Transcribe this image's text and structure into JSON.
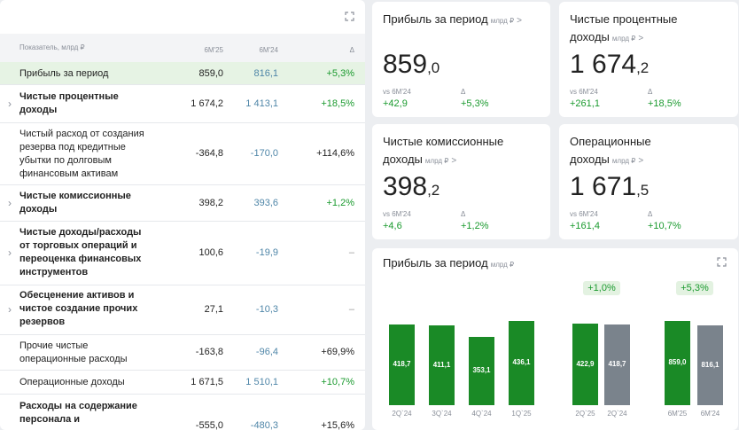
{
  "table": {
    "headers": {
      "name": "Показатель, млрд ₽",
      "c1": "6M'25",
      "c2": "6M'24",
      "c3": "Δ"
    },
    "rows": [
      {
        "name": "Прибыль за период",
        "v1": "859,0",
        "v2": "816,1",
        "v3": "+5,3%"
      },
      {
        "name": "Чистые процентные доходы",
        "v1": "1 674,2",
        "v2": "1 413,1",
        "v3": "+18,5%"
      },
      {
        "name": "Чистый расход от создания резерва под кредитные убытки по долговым финансовым активам",
        "v1": "-364,8",
        "v2": "-170,0",
        "v3": "+114,6%"
      },
      {
        "name": "Чистые комиссионные доходы",
        "v1": "398,2",
        "v2": "393,6",
        "v3": "+1,2%"
      },
      {
        "name": "Чистые доходы/расходы от торговых операций и переоценка финансовых инструментов",
        "v1": "100,6",
        "v2": "-19,9",
        "v3": "–"
      },
      {
        "name": "Обесценение активов и чистое создание прочих резервов",
        "v1": "27,1",
        "v2": "-10,3",
        "v3": "–"
      },
      {
        "name": "Прочие чистые операционные расходы",
        "v1": "-163,8",
        "v2": "-96,4",
        "v3": "+69,9%"
      },
      {
        "name": "Операционные доходы",
        "v1": "1 671,5",
        "v2": "1 510,1",
        "v3": "+10,7%"
      },
      {
        "name": "Расходы на содержание персонала и",
        "v1": "-555,0",
        "v2": "-480,3",
        "v3": "+15,6%"
      }
    ]
  },
  "cards": [
    {
      "title": "Прибыль за период",
      "unit": "млрд ₽",
      "arrow": ">",
      "int": "859",
      "dec": ",0",
      "sub1": "vs 6M'24",
      "sub2": "Δ",
      "val1": "+42,9",
      "val2": "+5,3%"
    },
    {
      "title": "Чистые процентные доходы",
      "unit": "млрд ₽",
      "arrow": ">",
      "int": "1 674",
      "dec": ",2",
      "sub1": "vs 6M'24",
      "sub2": "Δ",
      "val1": "+261,1",
      "val2": "+18,5%"
    },
    {
      "title": "Чистые комиссионные доходы",
      "unit": "млрд ₽",
      "arrow": ">",
      "int": "398",
      "dec": ",2",
      "sub1": "vs 6M'24",
      "sub2": "Δ",
      "val1": "+4,6",
      "val2": "+1,2%"
    },
    {
      "title": "Операционные доходы",
      "unit": "млрд ₽",
      "arrow": ">",
      "int": "1 671",
      "dec": ",5",
      "sub1": "vs 6M'24",
      "sub2": "Δ",
      "val1": "+161,4",
      "val2": "+10,7%"
    }
  ],
  "chart": {
    "title": "Прибыль за период",
    "unit": "млрд ₽",
    "badge1": "+1,0%",
    "badge2": "+5,3%"
  },
  "chart_data": {
    "type": "bar",
    "title": "Прибыль за период",
    "categories": [
      "2Q`24",
      "3Q`24",
      "4Q`24",
      "1Q`25",
      "2Q`25",
      "2Q`24",
      "6M'25",
      "6M'24"
    ],
    "values": [
      418.7,
      411.1,
      353.1,
      436.1,
      422.9,
      418.7,
      859.0,
      816.1
    ],
    "labels": [
      "418,7",
      "411,1",
      "353,1",
      "436,1",
      "422,9",
      "418,7",
      "859,0",
      "816,1"
    ],
    "colors": [
      "#1a8a26",
      "#1a8a26",
      "#1a8a26",
      "#1a8a26",
      "#1a8a26",
      "#7a838c",
      "#1a8a26",
      "#7a838c"
    ],
    "annotations": [
      "+1,0%",
      "+5,3%"
    ]
  }
}
